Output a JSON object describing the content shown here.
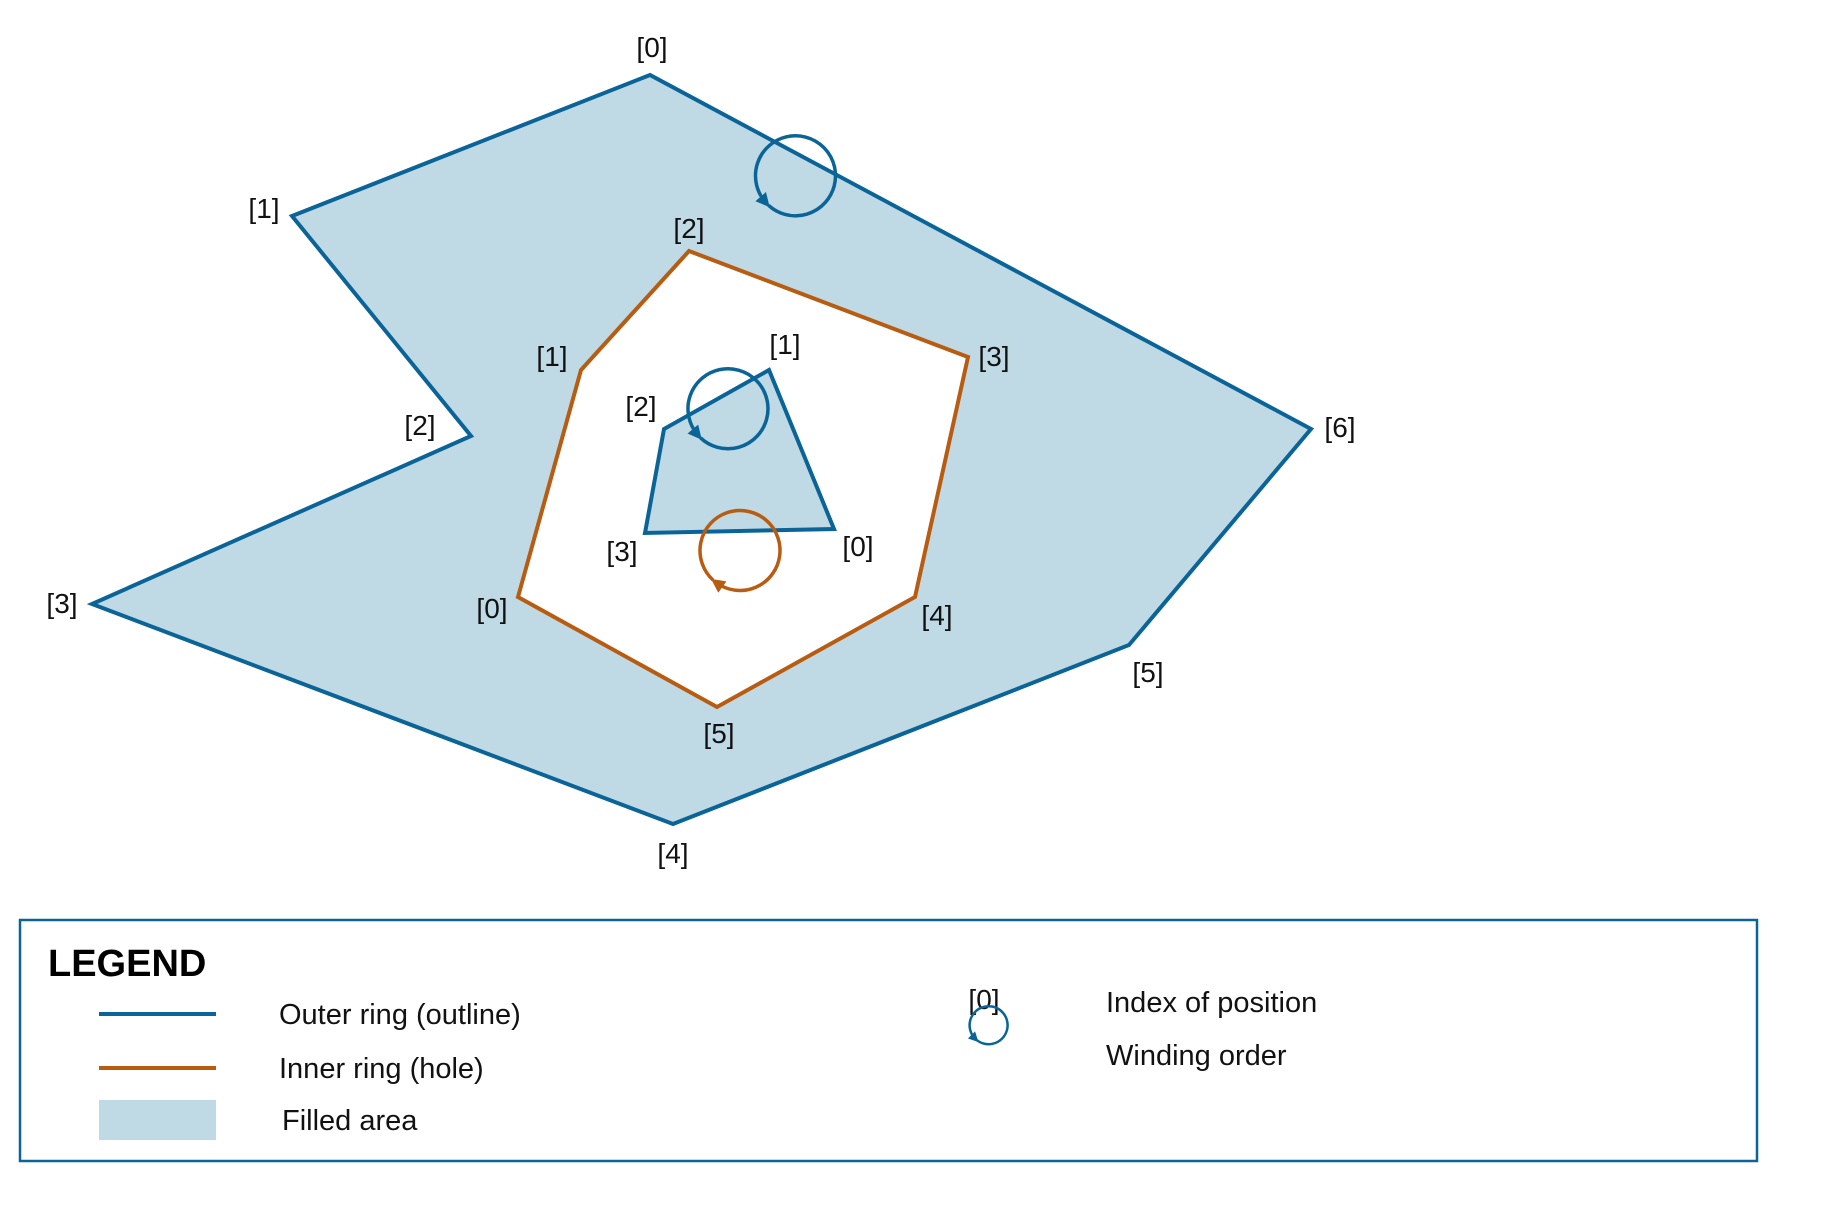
{
  "colors": {
    "outer": "#0b6497",
    "inner": "#b85c12",
    "fill": "#bfd9e5"
  },
  "outer_ring": {
    "labels": [
      "[0]",
      "[1]",
      "[2]",
      "[3]",
      "[4]",
      "[5]",
      "[6]"
    ]
  },
  "inner_ring": {
    "labels": [
      "[0]",
      "[1]",
      "[2]",
      "[3]",
      "[4]",
      "[5]"
    ]
  },
  "island_ring": {
    "labels": [
      "[0]",
      "[1]",
      "[2]",
      "[3]"
    ]
  },
  "legend": {
    "title": "LEGEND",
    "outer_label": "Outer ring (outline)",
    "inner_label": "Inner ring (hole)",
    "fill_label": "Filled area",
    "index_sample": "[0]",
    "index_label": "Index of position",
    "winding_label": "Winding order"
  }
}
